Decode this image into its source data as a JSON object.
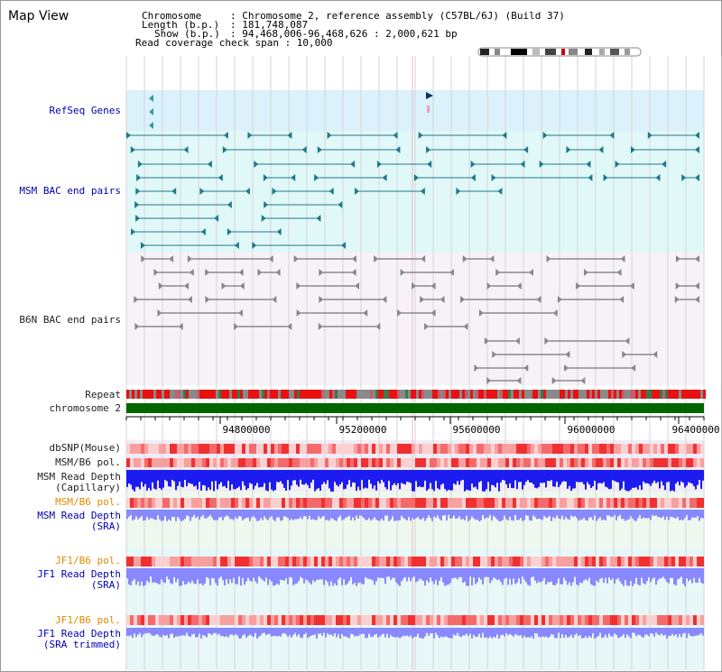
{
  "page": {
    "title": "Map View"
  },
  "header": {
    "chromosome_key": "Chromosome",
    "chromosome_value": ": Chromosome 2, reference assembly (C57BL/6J) (Build 37)",
    "length_key": "Length (b.p.)",
    "length_value": ": 181,748,087",
    "show_key": "Show (b.p.)",
    "show_value": ": 94,468,006-96,468,626 : 2,000,621 bp",
    "coverage": "Read coverage check span : 10,000"
  },
  "tracks": {
    "refseq": "RefSeq Genes",
    "msm_bac": "MSM BAC end pairs",
    "b6n_bac": "B6N BAC end pairs",
    "repeat": "Repeat",
    "chrom": "chromosome 2",
    "dbsnp": "dbSNP(Mouse)",
    "msm_b6_pol_1": "MSM/B6 pol.",
    "msm_read_depth_cap_1": "MSM Read Depth",
    "msm_read_depth_cap_2": "(Capillary)",
    "msm_b6_pol_2": "MSM/B6 pol.",
    "msm_read_depth_sra_1": "MSM Read Depth",
    "msm_read_depth_sra_2": "(SRA)",
    "jf1_b6_pol_1": "JF1/B6 pol.",
    "jf1_read_depth_1": "JF1 Read Depth",
    "jf1_read_depth_2": "(SRA)",
    "jf1_b6_pol_2": "JF1/B6 pol.",
    "jf1_read_depth_trim_1": "JF1 Read Depth",
    "jf1_read_depth_trim_2": "(SRA trimmed)"
  },
  "axis": {
    "ticks": [
      "94800000",
      "95200000",
      "95600000",
      "96000000",
      "96400000"
    ]
  },
  "colors": {
    "refseq_bg": "#dbf1fb",
    "msm_bg": "#e1f8f8",
    "b6n_bg": "#f6f2f8",
    "chrom_green": "#006600",
    "depth_blue": "#1c1cf0",
    "depth_light": "#8888ff",
    "pol_red": "#ee2222"
  }
}
